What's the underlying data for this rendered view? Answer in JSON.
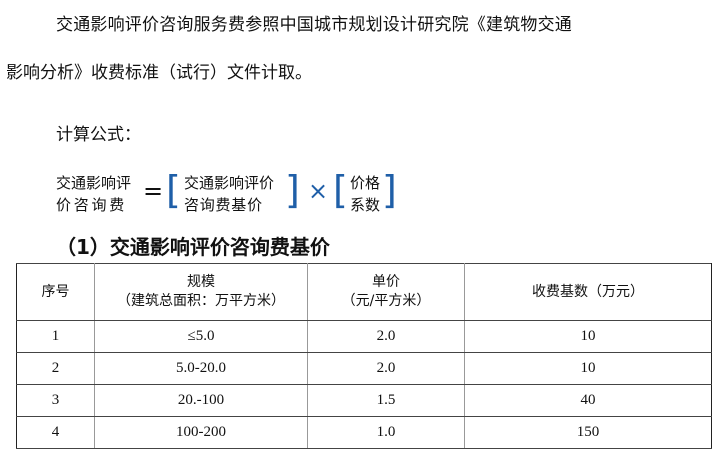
{
  "paragraph": {
    "line1": "交通影响评价咨询服务费参照中国城市规划设计研究院《建筑物交通",
    "line2": "影响分析》收费标准（试行）文件计取。",
    "formula_label": "计算公式："
  },
  "formula": {
    "lhs_1": "交通影响评",
    "lhs_2": "价 咨 询 费",
    "eq": "=",
    "base_1": "交通影响评价",
    "base_2": "咨 询 费 基 价",
    "times": "×",
    "coef_1": "价格",
    "coef_2": "系数",
    "bracket_color": "#1f5fa8"
  },
  "section_title": "（1）交通影响评价咨询费基价",
  "table": {
    "headers": [
      {
        "l1": "序号",
        "l2": ""
      },
      {
        "l1": "规模",
        "l2": "（建筑总面积：万平方米）"
      },
      {
        "l1": "单价",
        "l2": "（元/平方米）"
      },
      {
        "l1": "收费基数（万元）",
        "l2": ""
      }
    ],
    "rows": [
      [
        "1",
        "≤5.0",
        "2.0",
        "10"
      ],
      [
        "2",
        "5.0-20.0",
        "2.0",
        "10"
      ],
      [
        "3",
        "20.-100",
        "1.5",
        "40"
      ],
      [
        "4",
        "100-200",
        "1.0",
        "150"
      ]
    ]
  }
}
